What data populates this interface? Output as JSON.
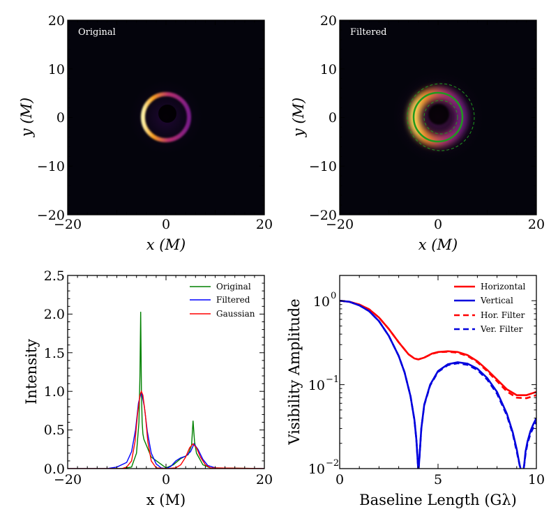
{
  "colors": {
    "original": "#008000",
    "filtered": "#0000ff",
    "gaussian": "#ff0000",
    "horizontal": "#ff0000",
    "vertical": "#0000dd",
    "background": "#04040c",
    "ring_fit": "#1f9a1f"
  },
  "chart_data": [
    {
      "type": "heatmap",
      "label": "Original",
      "xlabel": "x (M)",
      "ylabel": "y (M)",
      "xlim": [
        -20,
        20
      ],
      "ylim": [
        -20,
        20
      ],
      "xticks": [
        "−20",
        "0",
        "20"
      ],
      "yticks": [
        "20",
        "10",
        "0",
        "−10",
        "−20"
      ],
      "ring_radius": 5,
      "ring_center": [
        0,
        0
      ],
      "colormap": "inferno"
    },
    {
      "type": "heatmap",
      "label": "Filtered",
      "xlabel": "x (M)",
      "ylabel": "y (M)",
      "xlim": [
        -20,
        20
      ],
      "ylim": [
        -20,
        20
      ],
      "xticks": [
        "−20",
        "0",
        "20"
      ],
      "yticks": [
        "20",
        "10",
        "0",
        "−10",
        "−20"
      ],
      "ring_radius": 5,
      "ring_center": [
        0,
        0
      ],
      "outer_dashed_radius": 7,
      "inner_dashed_radius": 3.5,
      "colormap": "inferno"
    },
    {
      "type": "line",
      "xlabel": "x (M)",
      "ylabel": "Intensity",
      "xlim": [
        -20,
        20
      ],
      "ylim": [
        0,
        2.5
      ],
      "xticks": [
        "−20",
        "0",
        "20"
      ],
      "yticks": [
        "0.0",
        "0.5",
        "1.0",
        "1.5",
        "2.0",
        "2.5"
      ],
      "series": [
        {
          "name": "Original",
          "x": [
            -20,
            -9,
            -7,
            -6,
            -5.5,
            -5.3,
            -5.15,
            -5.0,
            -4.85,
            -4.7,
            -4.5,
            -3.0,
            0,
            1.5,
            3.0,
            4.5,
            5.2,
            5.5,
            5.8,
            6.2,
            7.5,
            9,
            20
          ],
          "y": [
            0,
            0,
            0.02,
            0.2,
            0.6,
            1.2,
            2.03,
            1.0,
            0.6,
            0.45,
            0.38,
            0.15,
            0.01,
            0.05,
            0.13,
            0.18,
            0.3,
            0.62,
            0.35,
            0.2,
            0.05,
            0.01,
            0
          ]
        },
        {
          "name": "Filtered",
          "x": [
            -20,
            -12,
            -10,
            -8,
            -7,
            -6.2,
            -5.6,
            -5.0,
            -4.4,
            -3.8,
            -3.0,
            -2.0,
            -1.0,
            0,
            1.0,
            2.0,
            3.0,
            4.0,
            5.0,
            5.7,
            6.5,
            7.5,
            8.5,
            10,
            12,
            20
          ],
          "y": [
            0,
            0,
            0.02,
            0.08,
            0.22,
            0.5,
            0.85,
            1.0,
            0.8,
            0.48,
            0.2,
            0.06,
            0.01,
            0,
            0.03,
            0.1,
            0.14,
            0.16,
            0.22,
            0.32,
            0.25,
            0.12,
            0.04,
            0.01,
            0,
            0
          ]
        },
        {
          "name": "Gaussian",
          "x": [
            -20,
            -9,
            -8,
            -7,
            -6.3,
            -5.8,
            -5.3,
            -5.0,
            -4.7,
            -4.2,
            -3.7,
            -3.0,
            -2.0,
            0,
            2.0,
            3.0,
            4.0,
            4.8,
            5.5,
            6.2,
            7.0,
            8.0,
            9.0,
            20
          ],
          "y": [
            0,
            0,
            0.02,
            0.1,
            0.35,
            0.7,
            0.95,
            1.0,
            0.95,
            0.7,
            0.35,
            0.1,
            0.01,
            0,
            0.01,
            0.05,
            0.15,
            0.27,
            0.32,
            0.27,
            0.15,
            0.05,
            0.01,
            0
          ]
        }
      ],
      "legend": "top-right"
    },
    {
      "type": "line",
      "xlabel": "Baseline Length (Gλ)",
      "ylabel": "Visibility Amplitude",
      "yscale": "log",
      "xlim": [
        0,
        10
      ],
      "ylim": [
        0.01,
        2
      ],
      "xticks": [
        "0",
        "5",
        "10"
      ],
      "yticks": [
        "10",
        "10",
        "10"
      ],
      "ytick_exponents": [
        "0",
        "−1",
        "−2"
      ],
      "series": [
        {
          "name": "Horizontal",
          "style": "solid",
          "x": [
            0,
            0.5,
            1,
            1.5,
            2,
            2.5,
            3,
            3.5,
            3.8,
            4.0,
            4.3,
            4.7,
            5.0,
            5.5,
            6.0,
            6.5,
            7.0,
            7.5,
            8.0,
            8.5,
            9.0,
            9.5,
            10
          ],
          "y": [
            1.0,
            0.97,
            0.9,
            0.79,
            0.63,
            0.46,
            0.32,
            0.23,
            0.205,
            0.2,
            0.21,
            0.235,
            0.245,
            0.25,
            0.245,
            0.225,
            0.19,
            0.15,
            0.115,
            0.088,
            0.075,
            0.075,
            0.082
          ]
        },
        {
          "name": "Vertical",
          "style": "solid",
          "x": [
            0,
            0.5,
            1,
            1.5,
            2,
            2.5,
            3,
            3.3,
            3.6,
            3.8,
            3.9,
            3.97,
            4.0,
            4.05,
            4.15,
            4.3,
            4.6,
            5.0,
            5.5,
            6.0,
            6.5,
            7.0,
            7.5,
            8.0,
            8.5,
            8.8,
            9.0,
            9.15,
            9.25,
            9.32,
            9.38,
            9.45,
            9.55,
            9.7,
            9.85,
            10
          ],
          "y": [
            1.0,
            0.97,
            0.88,
            0.75,
            0.57,
            0.38,
            0.22,
            0.14,
            0.073,
            0.038,
            0.022,
            0.012,
            0.009,
            0.013,
            0.03,
            0.058,
            0.1,
            0.145,
            0.175,
            0.185,
            0.178,
            0.155,
            0.12,
            0.082,
            0.045,
            0.027,
            0.017,
            0.011,
            0.009,
            0.009,
            0.011,
            0.016,
            0.021,
            0.028,
            0.034,
            0.04
          ]
        },
        {
          "name": "Hor. Filter",
          "style": "dashed",
          "x": [
            0,
            0.5,
            1,
            1.5,
            2,
            2.5,
            3,
            3.5,
            3.8,
            4.0,
            4.3,
            4.7,
            5.0,
            5.5,
            6.0,
            6.5,
            7.0,
            7.5,
            8.0,
            8.5,
            9.0,
            9.5,
            10
          ],
          "y": [
            1.0,
            0.97,
            0.9,
            0.79,
            0.63,
            0.46,
            0.32,
            0.23,
            0.205,
            0.2,
            0.21,
            0.233,
            0.243,
            0.247,
            0.24,
            0.22,
            0.185,
            0.145,
            0.11,
            0.083,
            0.07,
            0.069,
            0.075
          ]
        },
        {
          "name": "Ver. Filter",
          "style": "dashed",
          "x": [
            0,
            0.5,
            1,
            1.5,
            2,
            2.5,
            3,
            3.3,
            3.6,
            3.8,
            3.9,
            3.97,
            4.0,
            4.05,
            4.15,
            4.3,
            4.6,
            5.0,
            5.5,
            6.0,
            6.5,
            7.0,
            7.5,
            8.0,
            8.5,
            8.8,
            9.0,
            9.15,
            9.25,
            9.32,
            9.38,
            9.45,
            9.55,
            9.7,
            9.85,
            10
          ],
          "y": [
            1.0,
            0.97,
            0.88,
            0.75,
            0.57,
            0.38,
            0.22,
            0.14,
            0.073,
            0.038,
            0.022,
            0.012,
            0.009,
            0.013,
            0.03,
            0.057,
            0.098,
            0.142,
            0.171,
            0.18,
            0.172,
            0.15,
            0.115,
            0.078,
            0.043,
            0.026,
            0.016,
            0.011,
            0.009,
            0.009,
            0.011,
            0.015,
            0.02,
            0.026,
            0.031,
            0.036
          ]
        }
      ],
      "legend": "top-right"
    }
  ]
}
